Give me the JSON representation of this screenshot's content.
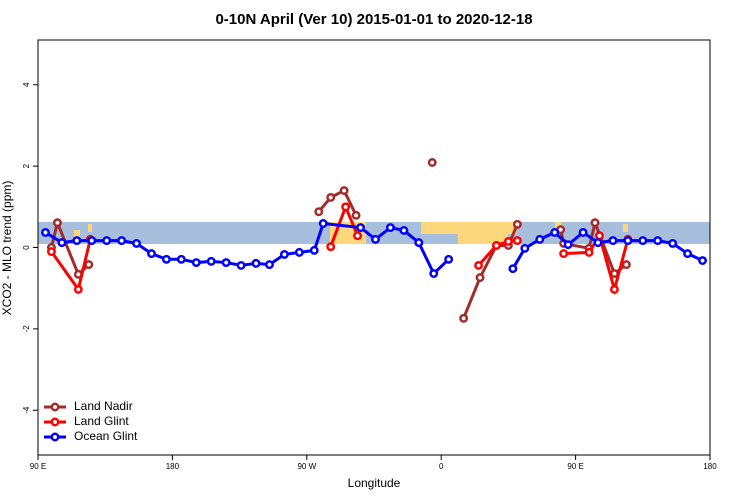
{
  "chart_data": {
    "type": "line",
    "title": "0-10N April (Ver 10)   2015-01-01 to 2020-12-18",
    "x_label": "Longitude",
    "y_label": "XCO2 - MLO trend (ppm)",
    "xlim": [
      90,
      540
    ],
    "ylim": [
      -5.1,
      5.1
    ],
    "xticks": [
      {
        "value": 90,
        "label": "90 E"
      },
      180,
      {
        "value": 270,
        "label": "90 W"
      },
      {
        "value": 360,
        "label": "0"
      },
      {
        "value": 450,
        "label": "90 E"
      },
      {
        "value": 540,
        "label": "180"
      }
    ],
    "yticks": [
      -4,
      -2,
      0,
      2,
      4
    ],
    "legend": "bottom-left",
    "series": [
      {
        "name": "Land Nadir",
        "color": "#a52a2a",
        "x": [
          99,
          103,
          117,
          124,
          200,
          278,
          286,
          295,
          303,
          330,
          354,
          365,
          375,
          386,
          397,
          405,
          411,
          425,
          440,
          442,
          459,
          463,
          476,
          484
        ],
        "values": [
          0.0,
          0.61,
          -0.66,
          -0.42,
          null,
          0.88,
          1.23,
          1.4,
          0.79,
          null,
          2.09,
          null,
          -1.74,
          -0.74,
          0.05,
          0.05,
          0.57,
          null,
          0.44,
          0.1,
          -0.02,
          0.61,
          -0.64,
          -0.42
        ]
      },
      {
        "name": "Land Glint",
        "color": "#ff0000",
        "x": [
          99,
          117,
          125,
          200,
          286,
          296,
          304,
          340,
          385,
          397,
          405,
          411,
          425,
          442,
          459,
          466,
          476,
          485
        ],
        "values": [
          -0.1,
          -1.03,
          0.2,
          null,
          0.02,
          1.0,
          0.29,
          null,
          -0.44,
          0.05,
          0.15,
          0.17,
          null,
          -0.15,
          -0.12,
          0.29,
          -1.03,
          0.2
        ]
      },
      {
        "name": "Ocean Glint",
        "color": "#0000ff",
        "x": [
          95,
          106,
          116,
          126,
          136,
          146,
          156,
          166,
          176,
          186,
          196,
          206,
          216,
          226,
          236,
          245,
          255,
          265,
          275,
          281,
          306,
          316,
          326,
          335,
          345,
          355,
          365,
          385,
          408,
          416,
          426,
          436,
          445,
          455,
          465,
          475,
          485,
          495,
          505,
          515,
          525,
          535
        ],
        "values": [
          0.37,
          0.12,
          0.17,
          0.17,
          0.17,
          0.17,
          0.1,
          -0.15,
          -0.29,
          -0.29,
          -0.37,
          -0.34,
          -0.37,
          -0.44,
          -0.39,
          -0.42,
          -0.17,
          -0.12,
          -0.07,
          0.59,
          0.49,
          0.2,
          0.49,
          0.42,
          0.12,
          -0.64,
          -0.29,
          null,
          -0.52,
          -0.02,
          0.2,
          0.37,
          0.07,
          0.37,
          0.12,
          0.17,
          0.17,
          0.17,
          0.17,
          0.1,
          -0.15,
          -0.32
        ]
      }
    ]
  }
}
